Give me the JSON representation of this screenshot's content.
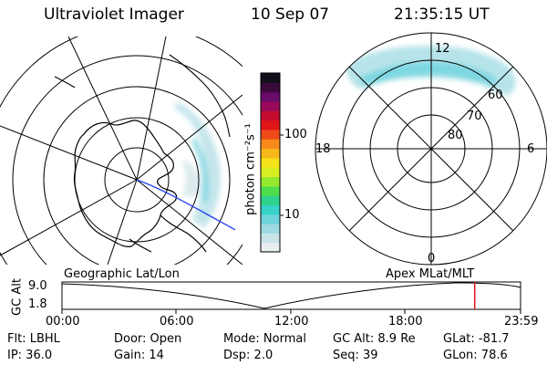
{
  "header": {
    "title": "Ultraviolet Imager",
    "date": "10 Sep 07",
    "time": "21:35:15 UT"
  },
  "colorbar": {
    "unit_label": "photon cm⁻²s⁻¹",
    "ticks": [
      "100",
      "10"
    ],
    "colors": [
      "#e8eef0",
      "#c9e4e8",
      "#9fd9e2",
      "#6fd3dc",
      "#36d2c8",
      "#2fd38e",
      "#4fdd4a",
      "#96e82f",
      "#d6ee22",
      "#f5e21a",
      "#f7b81a",
      "#f78a1a",
      "#ef4a1a",
      "#e0161a",
      "#c40d2e",
      "#9a0a5a",
      "#6a0a6a",
      "#3a0a3a",
      "#10101a"
    ]
  },
  "left_map": {
    "label": "Geographic Lat/Lon"
  },
  "right_map": {
    "label": "Apex MLat/MLT",
    "mlt_labels": [
      "12",
      "18",
      "6",
      "0"
    ],
    "lat_labels": [
      "60",
      "70",
      "80"
    ]
  },
  "timeline": {
    "axis_label": "GC Alt",
    "y_top": "9.0",
    "y_bottom": "1.8",
    "x_ticks": [
      "00:00",
      "06:00",
      "12:00",
      "18:00",
      "23:59"
    ],
    "current_time_fraction": 0.9
  },
  "status": {
    "flt": "Flt: LBHL",
    "ip": "IP: 36.0",
    "door": "Door: Open",
    "gain": "Gain: 14",
    "mode": "Mode: Normal",
    "dsp": "Dsp:    2.0",
    "gcalt": "GC Alt: 8.9 Re",
    "seq": "Seq: 39",
    "glat": "GLat: -81.7",
    "glon": "GLon:  78.6"
  }
}
